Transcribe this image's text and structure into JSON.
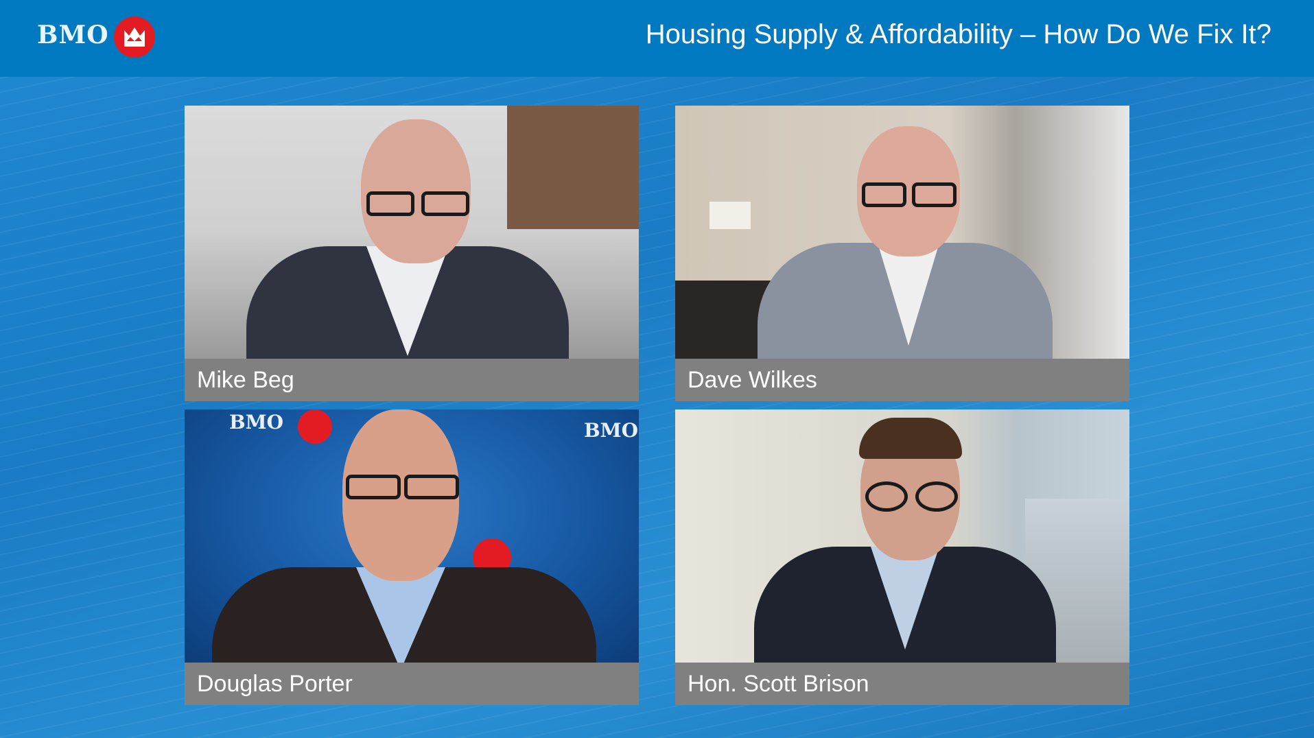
{
  "header": {
    "logo_text": "BMO",
    "title": "Housing Supply & Affordability – How Do We Fix It?",
    "brand_color": "#0079c1",
    "logo_badge_color": "#e31c23"
  },
  "participants": [
    {
      "name": "Mike Beg"
    },
    {
      "name": "Dave Wilkes"
    },
    {
      "name": "Douglas Porter"
    },
    {
      "name": "Hon. Scott Brison"
    }
  ],
  "backdrop_logo_text": "BMO",
  "label_color": "#808080"
}
